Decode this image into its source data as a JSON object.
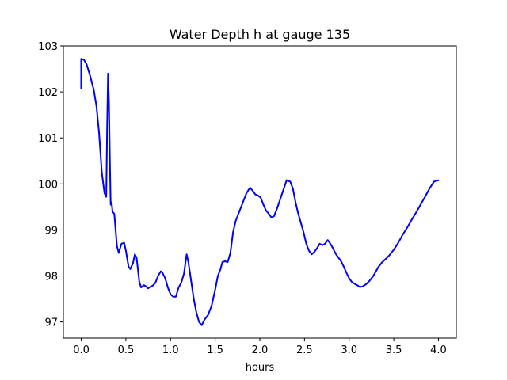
{
  "chart_data": {
    "type": "line",
    "title": "Water Depth h at gauge 135",
    "xlabel": "hours",
    "ylabel": "",
    "xlim": [
      -0.2,
      4.2
    ],
    "ylim": [
      96.65,
      103.0
    ],
    "xticks": [
      0.0,
      0.5,
      1.0,
      1.5,
      2.0,
      2.5,
      3.0,
      3.5,
      4.0
    ],
    "xtick_labels": [
      "0.0",
      "0.5",
      "1.0",
      "1.5",
      "2.0",
      "2.5",
      "3.0",
      "3.5",
      "4.0"
    ],
    "yticks": [
      97,
      98,
      99,
      100,
      101,
      102,
      103
    ],
    "ytick_labels": [
      "97",
      "98",
      "99",
      "100",
      "101",
      "102",
      "103"
    ],
    "grid": false,
    "series": [
      {
        "color": "#0000ff",
        "x": [
          0.0,
          0.0,
          0.03,
          0.06,
          0.1,
          0.14,
          0.17,
          0.2,
          0.23,
          0.26,
          0.28,
          0.29,
          0.3,
          0.31,
          0.32,
          0.33,
          0.34,
          0.35,
          0.37,
          0.4,
          0.42,
          0.45,
          0.48,
          0.5,
          0.53,
          0.55,
          0.58,
          0.6,
          0.62,
          0.65,
          0.67,
          0.7,
          0.72,
          0.75,
          0.77,
          0.8,
          0.83,
          0.86,
          0.89,
          0.91,
          0.94,
          0.97,
          1.0,
          1.03,
          1.06,
          1.09,
          1.12,
          1.15,
          1.18,
          1.2,
          1.23,
          1.26,
          1.29,
          1.32,
          1.35,
          1.38,
          1.42,
          1.46,
          1.5,
          1.53,
          1.56,
          1.58,
          1.61,
          1.64,
          1.67,
          1.7,
          1.73,
          1.77,
          1.81,
          1.85,
          1.89,
          1.92,
          1.95,
          1.98,
          2.01,
          2.04,
          2.07,
          2.1,
          2.13,
          2.16,
          2.19,
          2.22,
          2.26,
          2.3,
          2.34,
          2.37,
          2.4,
          2.43,
          2.46,
          2.49,
          2.52,
          2.55,
          2.58,
          2.61,
          2.64,
          2.67,
          2.7,
          2.73,
          2.76,
          2.79,
          2.82,
          2.85,
          2.88,
          2.91,
          2.94,
          2.97,
          3.0,
          3.03,
          3.06,
          3.09,
          3.12,
          3.15,
          3.19,
          3.23,
          3.27,
          3.3,
          3.33,
          3.37,
          3.41,
          3.45,
          3.5,
          3.55,
          3.6,
          3.65,
          3.7,
          3.75,
          3.8,
          3.85,
          3.9,
          3.95,
          4.0
        ],
        "y": [
          102.07,
          102.72,
          102.7,
          102.6,
          102.35,
          102.05,
          101.7,
          101.1,
          100.25,
          99.8,
          99.72,
          101.2,
          102.4,
          101.8,
          100.6,
          99.55,
          99.6,
          99.4,
          99.35,
          98.65,
          98.5,
          98.7,
          98.72,
          98.55,
          98.2,
          98.15,
          98.28,
          98.47,
          98.4,
          97.88,
          97.75,
          97.8,
          97.78,
          97.73,
          97.76,
          97.79,
          97.85,
          98.0,
          98.1,
          98.07,
          97.95,
          97.75,
          97.6,
          97.55,
          97.55,
          97.75,
          97.85,
          98.05,
          98.47,
          98.3,
          97.9,
          97.5,
          97.2,
          97.0,
          96.93,
          97.05,
          97.15,
          97.35,
          97.7,
          98.0,
          98.15,
          98.3,
          98.32,
          98.3,
          98.5,
          98.95,
          99.2,
          99.4,
          99.6,
          99.8,
          99.92,
          99.85,
          99.77,
          99.75,
          99.7,
          99.55,
          99.42,
          99.35,
          99.27,
          99.3,
          99.45,
          99.62,
          99.85,
          100.08,
          100.05,
          99.9,
          99.6,
          99.35,
          99.15,
          98.95,
          98.7,
          98.55,
          98.47,
          98.52,
          98.6,
          98.7,
          98.67,
          98.7,
          98.78,
          98.7,
          98.6,
          98.48,
          98.4,
          98.32,
          98.2,
          98.07,
          97.95,
          97.87,
          97.83,
          97.8,
          97.76,
          97.77,
          97.82,
          97.9,
          98.0,
          98.1,
          98.2,
          98.3,
          98.37,
          98.45,
          98.57,
          98.72,
          98.9,
          99.05,
          99.22,
          99.38,
          99.55,
          99.72,
          99.9,
          100.05,
          100.08
        ]
      }
    ]
  }
}
